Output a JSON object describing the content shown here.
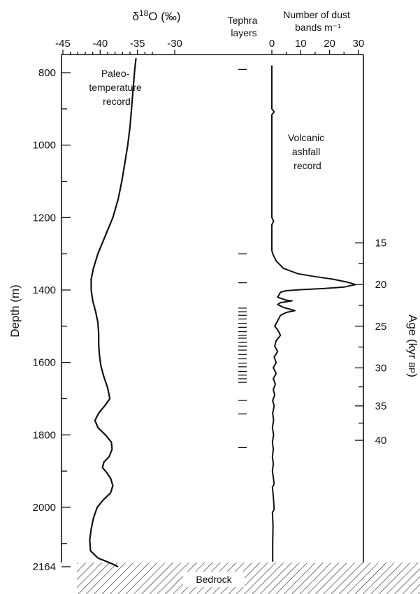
{
  "chart_data": {
    "type": "line",
    "title": "",
    "annotations": {
      "paleo_label": [
        "Paleo-",
        "temperature",
        "record"
      ],
      "volcanic_label": [
        "Volcanic",
        "ashfall",
        "record"
      ],
      "tephra_label": [
        "Tephra",
        "layers"
      ],
      "bedrock_label": "Bedrock"
    },
    "axes": {
      "depth": {
        "label": "Depth (m)",
        "ticks": [
          "800",
          "1000",
          "1200",
          "1400",
          "1600",
          "1800",
          "2000",
          "2164"
        ],
        "tick_values": [
          800,
          1000,
          1200,
          1400,
          1600,
          1800,
          2000,
          2164
        ],
        "range": [
          760,
          2200
        ],
        "inverted": true
      },
      "d18o": {
        "label_parts": [
          "δ",
          "18",
          "O (‰)"
        ],
        "ticks": [
          "-45",
          "-40",
          "-35",
          "-30"
        ],
        "tick_values": [
          -45,
          -40,
          -35,
          -30
        ],
        "range": [
          -45,
          -30
        ]
      },
      "dust": {
        "label_lines": [
          "Number of dust",
          "bands m⁻¹"
        ],
        "ticks": [
          "0",
          "10",
          "20",
          "30"
        ],
        "tick_values": [
          0,
          10,
          20,
          30
        ],
        "range": [
          0,
          30
        ]
      },
      "age": {
        "label_parts": [
          "Age (kyr ",
          "BP",
          ")"
        ],
        "ticks": [
          "15",
          "20",
          "25",
          "30",
          "35",
          "40"
        ],
        "tick_values": [
          15,
          20,
          25,
          30,
          35,
          40
        ],
        "tick_depths": [
          1270,
          1385,
          1500,
          1615,
          1720,
          1815
        ]
      }
    },
    "series": [
      {
        "key": "paleotemperature",
        "x_axis": "d18o",
        "points": [
          [
            -35.2,
            760
          ],
          [
            -35.4,
            800
          ],
          [
            -35.6,
            850
          ],
          [
            -35.8,
            900
          ],
          [
            -36.0,
            950
          ],
          [
            -36.3,
            1000
          ],
          [
            -36.7,
            1050
          ],
          [
            -37.1,
            1100
          ],
          [
            -37.6,
            1150
          ],
          [
            -38.3,
            1200
          ],
          [
            -39.3,
            1250
          ],
          [
            -40.3,
            1300
          ],
          [
            -40.9,
            1340
          ],
          [
            -41.2,
            1370
          ],
          [
            -41.2,
            1400
          ],
          [
            -41.0,
            1430
          ],
          [
            -40.6,
            1460
          ],
          [
            -40.3,
            1490
          ],
          [
            -40.2,
            1520
          ],
          [
            -40.2,
            1550
          ],
          [
            -40.1,
            1580
          ],
          [
            -39.9,
            1610
          ],
          [
            -39.5,
            1640
          ],
          [
            -39.0,
            1670
          ],
          [
            -38.7,
            1700
          ],
          [
            -39.4,
            1720
          ],
          [
            -40.2,
            1740
          ],
          [
            -40.7,
            1760
          ],
          [
            -40.3,
            1780
          ],
          [
            -39.3,
            1800
          ],
          [
            -38.5,
            1820
          ],
          [
            -38.4,
            1840
          ],
          [
            -38.8,
            1860
          ],
          [
            -39.5,
            1875
          ],
          [
            -39.7,
            1890
          ],
          [
            -39.1,
            1905
          ],
          [
            -38.6,
            1920
          ],
          [
            -38.3,
            1940
          ],
          [
            -38.6,
            1960
          ],
          [
            -39.6,
            1980
          ],
          [
            -40.4,
            2000
          ],
          [
            -40.9,
            2030
          ],
          [
            -41.2,
            2060
          ],
          [
            -41.4,
            2090
          ],
          [
            -41.3,
            2120
          ],
          [
            -40.3,
            2140
          ],
          [
            -38.5,
            2155
          ],
          [
            -37.6,
            2164
          ]
        ]
      },
      {
        "key": "volcanic_ashfall",
        "x_axis": "dust",
        "points": [
          [
            0,
            780
          ],
          [
            0,
            900
          ],
          [
            0.8,
            908
          ],
          [
            0,
            916
          ],
          [
            0,
            1030
          ],
          [
            0,
            1200
          ],
          [
            0.6,
            1210
          ],
          [
            0,
            1220
          ],
          [
            0,
            1290
          ],
          [
            0.3,
            1300
          ],
          [
            1.5,
            1320
          ],
          [
            4,
            1340
          ],
          [
            9,
            1355
          ],
          [
            15,
            1363
          ],
          [
            21,
            1370
          ],
          [
            26,
            1378
          ],
          [
            29,
            1385
          ],
          [
            25,
            1392
          ],
          [
            18,
            1396
          ],
          [
            10,
            1399
          ],
          [
            5,
            1402
          ],
          [
            3,
            1406
          ],
          [
            2,
            1420
          ],
          [
            5,
            1428
          ],
          [
            7,
            1430
          ],
          [
            3,
            1435
          ],
          [
            2,
            1440
          ],
          [
            4,
            1448
          ],
          [
            8,
            1457
          ],
          [
            5,
            1462
          ],
          [
            3,
            1470
          ],
          [
            2,
            1485
          ],
          [
            1,
            1500
          ],
          [
            2,
            1510
          ],
          [
            3,
            1525
          ],
          [
            1.5,
            1540
          ],
          [
            1,
            1555
          ],
          [
            2,
            1570
          ],
          [
            0.8,
            1585
          ],
          [
            1.5,
            1600
          ],
          [
            0.5,
            1615
          ],
          [
            1.5,
            1630
          ],
          [
            0.5,
            1645
          ],
          [
            1.2,
            1660
          ],
          [
            0.5,
            1675
          ],
          [
            1,
            1690
          ],
          [
            0.3,
            1705
          ],
          [
            0.8,
            1720
          ],
          [
            0.3,
            1740
          ],
          [
            0.6,
            1760
          ],
          [
            0.2,
            1780
          ],
          [
            0.6,
            1800
          ],
          [
            0.2,
            1820
          ],
          [
            0.5,
            1840
          ],
          [
            0.2,
            1860
          ],
          [
            0.5,
            1880
          ],
          [
            0.2,
            1900
          ],
          [
            0.8,
            1935
          ],
          [
            0.2,
            1945
          ],
          [
            0.5,
            1970
          ],
          [
            0.8,
            2005
          ],
          [
            0.2,
            2015
          ],
          [
            0.4,
            2050
          ],
          [
            0.3,
            2100
          ],
          [
            0.3,
            2150
          ]
        ]
      }
    ],
    "tephra_depths": [
      791,
      1300,
      1380,
      1450,
      1460,
      1470,
      1480,
      1492,
      1503,
      1515,
      1525,
      1533,
      1545,
      1555,
      1566,
      1578,
      1590,
      1602,
      1612,
      1625,
      1635,
      1645,
      1655,
      1705,
      1742,
      1835
    ]
  }
}
